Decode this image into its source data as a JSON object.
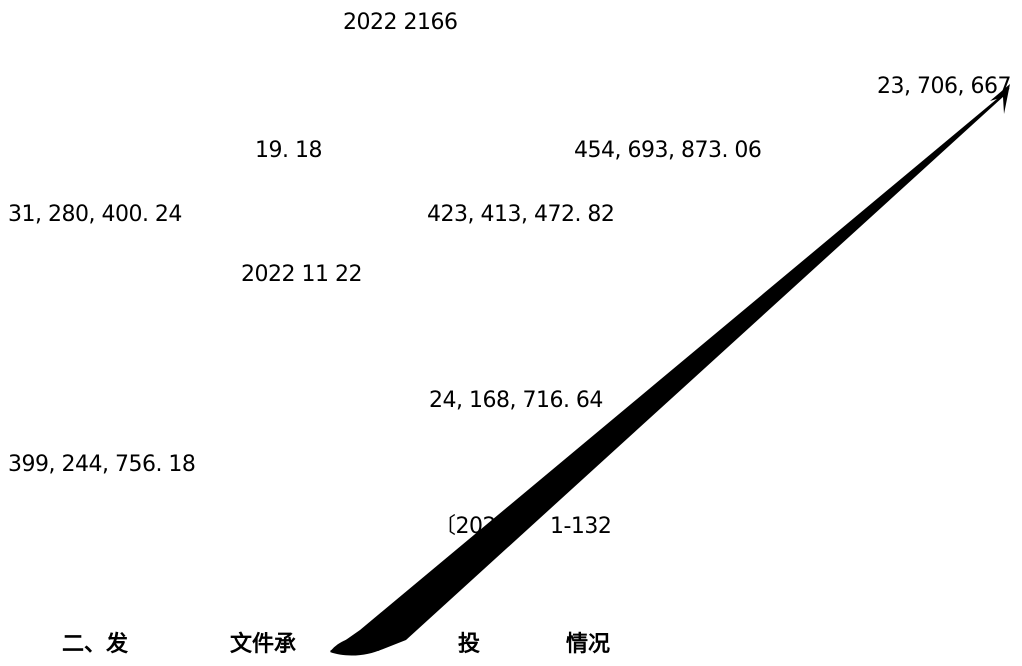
{
  "fragments": {
    "year_range": "2022    2166",
    "value_a": "23, 706, 667",
    "ratio": "19. 18",
    "value_b": "454, 693, 873. 06",
    "value_c": "31, 280, 400. 24",
    "value_d": "423, 413, 472. 82",
    "date": "2022     11     22",
    "value_e": "24, 168, 716. 64",
    "value_f": "399, 244, 756. 18",
    "doc_ref_start": "〔202",
    "doc_ref_end": "1-132",
    "heading_char": "投"
  },
  "heading": {
    "part1": "二、发",
    "part2": "文件承",
    "part3": "投",
    "part4": "情况"
  },
  "colors": {
    "text": "#000000",
    "redaction_stroke": "#000000",
    "background": "#ffffff"
  }
}
